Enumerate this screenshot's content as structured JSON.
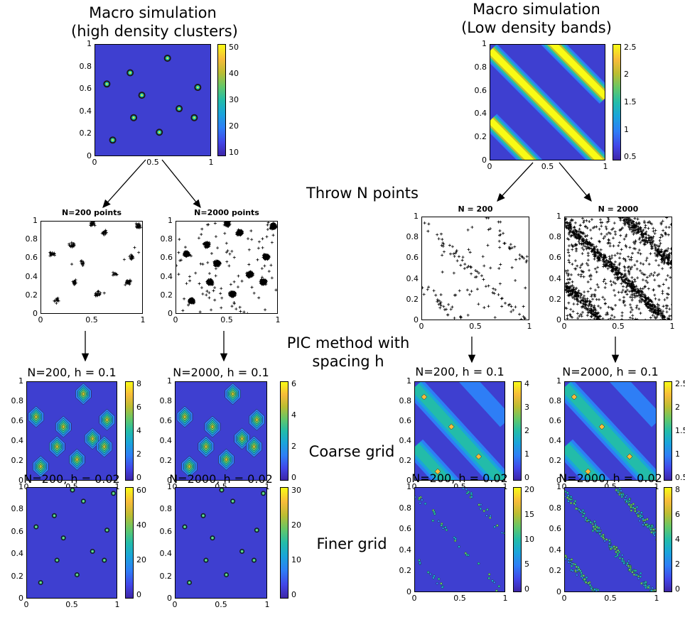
{
  "labels": {
    "macro_left": [
      "Macro simulation",
      "(high density clusters)"
    ],
    "macro_right": [
      "Macro simulation",
      "(Low density bands)"
    ],
    "throw_points": "Throw N points",
    "pic_method": [
      "PIC method with",
      "spacing h"
    ],
    "coarse_grid": "Coarse grid",
    "finer_grid": "Finer grid"
  },
  "panels": {
    "macro_left": {
      "ticks_y": [
        "1",
        "0.8",
        "0.6",
        "0.4",
        "0.2",
        "0"
      ],
      "ticks_x": [
        "0",
        "0.5",
        "1"
      ],
      "cbar": [
        "50",
        "40",
        "30",
        "20",
        "10"
      ]
    },
    "macro_right": {
      "ticks_y": [
        "1",
        "0.8",
        "0.6",
        "0.4",
        "0.2",
        "0"
      ],
      "ticks_x": [
        "0",
        "0.5",
        "1"
      ],
      "cbar": [
        "2.5",
        "2",
        "1.5",
        "1",
        "0.5"
      ]
    },
    "scatter_l200": {
      "title": "N=200 points",
      "ticks_y": [
        "1",
        "0.8",
        "0.6",
        "0.4",
        "0.2",
        "0"
      ],
      "ticks_x": [
        "0",
        "0.5",
        "1"
      ]
    },
    "scatter_l2000": {
      "title": "N=2000 points",
      "ticks_y": [
        "1",
        "0.8",
        "0.6",
        "0.4",
        "0.2",
        "0"
      ],
      "ticks_x": [
        "0",
        "0.5",
        "1"
      ]
    },
    "scatter_r200": {
      "title": "N = 200",
      "ticks_y": [
        "1",
        "0.8",
        "0.6",
        "0.4",
        "0.2",
        "0"
      ],
      "ticks_x": [
        "0",
        "0.5",
        "1"
      ]
    },
    "scatter_r2000": {
      "title": "N = 2000",
      "ticks_y": [
        "1",
        "0.8",
        "0.6",
        "0.4",
        "0.2",
        "0"
      ],
      "ticks_x": [
        "0",
        "0.5",
        "1"
      ]
    },
    "coarse_l200": {
      "title": "N=200, h = 0.1",
      "ticks_y": [
        "1",
        "0.8",
        "0.6",
        "0.4",
        "0.2",
        "0"
      ],
      "ticks_x": [
        "0",
        "0.5",
        "1"
      ],
      "cbar": [
        "8",
        "6",
        "4",
        "2",
        "0"
      ]
    },
    "coarse_l2000": {
      "title": "N=2000, h = 0.1",
      "ticks_y": [
        "1",
        "0.8",
        "0.6",
        "0.4",
        "0.2",
        "0"
      ],
      "ticks_x": [
        "0",
        "0.5",
        "1"
      ],
      "cbar": [
        "6",
        "4",
        "2",
        "0"
      ]
    },
    "coarse_r200": {
      "title": "N=200, h = 0.1",
      "ticks_y": [
        "1",
        "0.8",
        "0.6",
        "0.4",
        "0.2",
        "0"
      ],
      "ticks_x": [
        "0",
        "0.5",
        "1"
      ],
      "cbar": [
        "4",
        "3",
        "2",
        "1",
        "0"
      ]
    },
    "coarse_r2000": {
      "title": "N=2000, h = 0.1",
      "ticks_y": [
        "1",
        "0.8",
        "0.6",
        "0.4",
        "0.2",
        "0"
      ],
      "ticks_x": [
        "0",
        "0.5",
        "1"
      ],
      "cbar": [
        "2.5",
        "2",
        "1.5",
        "1",
        "0.5"
      ]
    },
    "fine_l200": {
      "title": "N=200, h = 0.02",
      "ticks_y": [
        "1",
        "0.8",
        "0.6",
        "0.4",
        "0.2",
        "0"
      ],
      "ticks_x": [
        "0",
        "0.5",
        "1"
      ],
      "cbar": [
        "60",
        "40",
        "20",
        "0"
      ]
    },
    "fine_l2000": {
      "title": "N=2000, h = 0.02",
      "ticks_y": [
        "1",
        "0.8",
        "0.6",
        "0.4",
        "0.2",
        "0"
      ],
      "ticks_x": [
        "0",
        "0.5",
        "1"
      ],
      "cbar": [
        "30",
        "20",
        "10",
        "0"
      ]
    },
    "fine_r200": {
      "title": "N=200, h = 0.02",
      "ticks_y": [
        "1",
        "0.8",
        "0.6",
        "0.4",
        "0.2",
        "0"
      ],
      "ticks_x": [
        "0",
        "0.5",
        "1"
      ],
      "cbar": [
        "20",
        "15",
        "10",
        "5",
        "0"
      ]
    },
    "fine_r2000": {
      "title": "N=2000, h = 0.02",
      "ticks_y": [
        "1",
        "0.8",
        "0.6",
        "0.4",
        "0.2",
        "0"
      ],
      "ticks_x": [
        "0",
        "0.5",
        "1"
      ],
      "cbar": [
        "8",
        "6",
        "4",
        "2",
        "0"
      ]
    }
  },
  "colors": {
    "background_field": "#3e3fd0",
    "band": "#f9fb15",
    "points": "#000000"
  }
}
